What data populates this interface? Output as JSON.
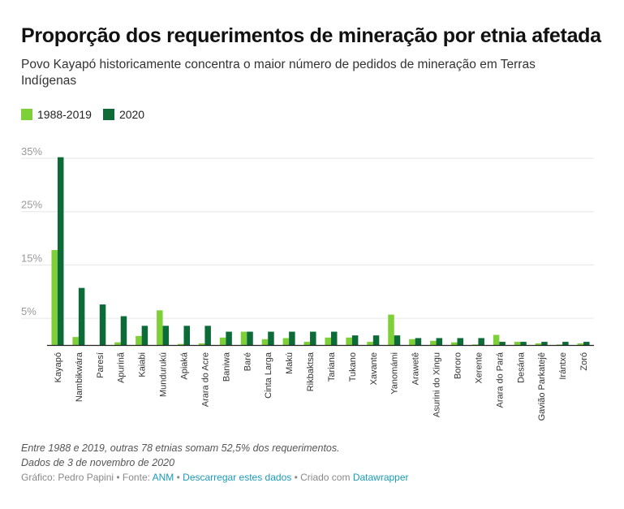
{
  "title": "Proporção dos requerimentos de mineração por etnia afetada",
  "subtitle": "Povo Kayapó historicamente concentra o maior número de pedidos de mineração em Terras Indígenas",
  "notes": {
    "line1": "Entre 1988 e 2019, outras 78 etnias somam 52,5% dos requerimentos.",
    "line2": "Dados de 3 de novembro de 2020"
  },
  "credit": {
    "prefix": "Gráfico: Pedro Papini • Fonte: ",
    "source_link": "ANM",
    "sep1": " • ",
    "download_link": "Descarregar estes dados",
    "sep2": " • Criado com ",
    "tool_link": "Datawrapper"
  },
  "colors": {
    "series_1988": "#7ed038",
    "series_2020": "#0d6b38",
    "grid": "#e6e6e6",
    "axis": "#222222",
    "tick_text": "#999999"
  },
  "chart_data": {
    "type": "bar",
    "categories": [
      "Kayapó",
      "Nambikwára",
      "Paresí",
      "Apurinã",
      "Kaiabi",
      "Mundurukú",
      "Apiaká",
      "Arara do Acre",
      "Baniwa",
      "Baré",
      "Cinta Larga",
      "Makú",
      "Rikbaktsa",
      "Tariana",
      "Tukano",
      "Xavante",
      "Yanomámi",
      "Arawetê",
      "Asurini do Xingu",
      "Bororo",
      "Xerente",
      "Arara do Pará",
      "Desána",
      "Gavião Parkatejê",
      "Irántxe",
      "Zoró"
    ],
    "series": [
      {
        "name": "1988-2019",
        "values": [
          17.8,
          1.5,
          0,
          0.5,
          1.7,
          6.5,
          0.2,
          0.3,
          1.4,
          2.5,
          1.1,
          1.3,
          0.6,
          1.4,
          1.4,
          0.6,
          5.7,
          1.1,
          0.8,
          0.5,
          0.1,
          1.9,
          0.6,
          0.3,
          0.1,
          0.3
        ]
      },
      {
        "name": "2020",
        "values": [
          35.2,
          10.7,
          7.6,
          5.4,
          3.6,
          3.6,
          3.6,
          3.6,
          2.5,
          2.5,
          2.5,
          2.5,
          2.5,
          2.5,
          1.8,
          1.8,
          1.8,
          1.3,
          1.3,
          1.3,
          1.3,
          0.6,
          0.6,
          0.6,
          0.6,
          0.6
        ]
      }
    ],
    "ylim": [
      0,
      35
    ],
    "yticks": [
      5,
      15,
      25,
      35
    ],
    "ytick_labels": [
      "5%",
      "15%",
      "25%",
      "35%"
    ],
    "grid": true,
    "legend": "top-left"
  }
}
